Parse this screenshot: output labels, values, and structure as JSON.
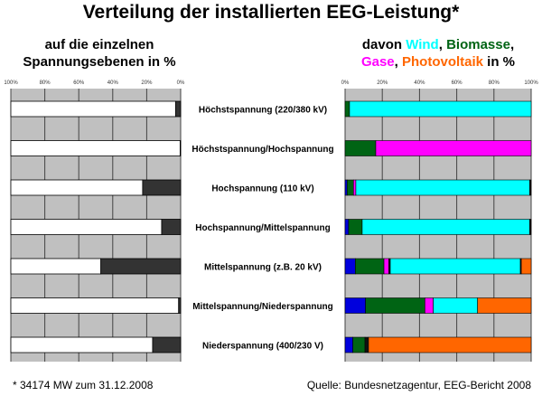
{
  "title": "Verteilung der installierten EEG-Leistung*",
  "left_subtitle": {
    "line1": "auf die einzelnen",
    "line2": "Spannungsebenen in %"
  },
  "right_subtitle": {
    "prefix": "davon ",
    "wind": "Wind",
    "sep1": ", ",
    "biomasse": "Biomasse",
    "sep2": ",",
    "gase": "Gase",
    "sep3": ", ",
    "pv": "Photovoltaik",
    "suffix": " in %"
  },
  "footnote": "* 34174 MW zum 31.12.2008",
  "source": "Quelle: Bundesnetzagentur, EEG-Bericht 2008",
  "colors": {
    "wind": "#00ffff",
    "biomasse": "#006414",
    "gase": "#ff00ff",
    "pv": "#ff6600",
    "blue": "#0000dd",
    "black": "#111111",
    "grid": "#c0c0c0"
  },
  "chart_data": [
    {
      "type": "bar",
      "orientation": "horizontal-stacked-reversed",
      "categories": [
        "Höchstspannung (220/380 kV)",
        "Höchstspannung/Hochspannung",
        "Hochspannung (110 kV)",
        "Hochspannung/Mittelspannung",
        "Mittelspannung (z.B. 20 kV)",
        "Mittelspannung/Niederspannung",
        "Niederspannung (400/230 V)"
      ],
      "xticks": [
        "100%",
        "80%",
        "60%",
        "40%",
        "20%",
        "0%"
      ],
      "xlim": [
        100,
        0
      ],
      "values": [
        3,
        0.3,
        22.4,
        11.2,
        47,
        1.2,
        16.5
      ],
      "series_colors": {
        "share": "#333333",
        "rest": "#ffffff"
      }
    },
    {
      "type": "bar",
      "orientation": "horizontal-stacked",
      "xticks": [
        "0%",
        "20%",
        "40%",
        "60%",
        "80%",
        "100%"
      ],
      "xlim": [
        0,
        100
      ],
      "series": [
        {
          "key": "blue",
          "values": [
            0,
            0,
            1.1,
            1.9,
            5.5,
            11,
            4.2
          ]
        },
        {
          "key": "biomasse",
          "values": [
            2.4,
            16.5,
            3.4,
            7.3,
            15.4,
            31.9,
            6.5
          ]
        },
        {
          "key": "gase",
          "values": [
            0,
            83.5,
            1.3,
            0,
            2.6,
            4.5,
            0
          ]
        },
        {
          "key": "black",
          "values": [
            0,
            0,
            0,
            0,
            0.8,
            0,
            1.9
          ]
        },
        {
          "key": "wind",
          "values": [
            97.6,
            0,
            93.4,
            90,
            69.9,
            23.8,
            0
          ]
        },
        {
          "key": "black",
          "values": [
            0,
            0,
            0.8,
            0.8,
            0.5,
            0,
            0
          ]
        },
        {
          "key": "pv",
          "values": [
            0,
            0,
            0,
            0,
            5.3,
            28.8,
            87.4
          ]
        }
      ]
    }
  ]
}
